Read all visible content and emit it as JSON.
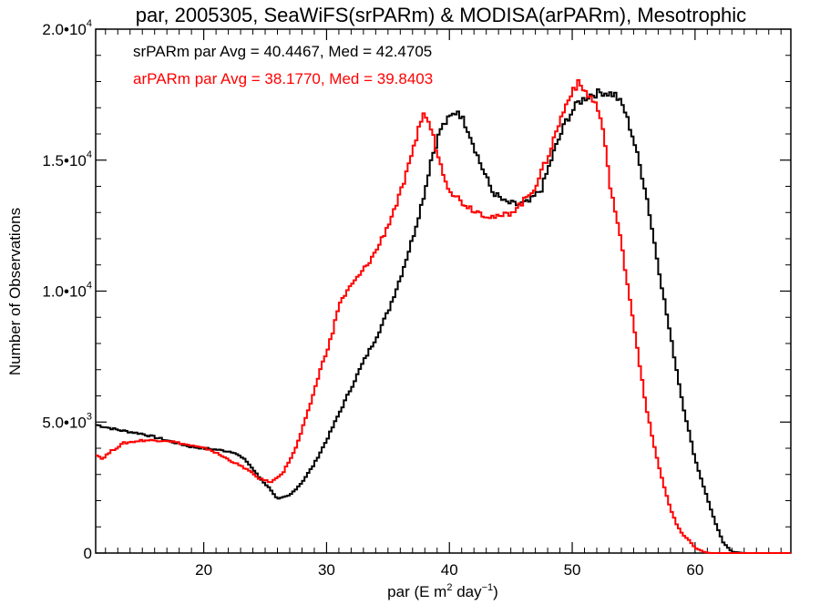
{
  "chart_data": {
    "type": "line",
    "title": "par, 2005305, SeaWiFS(srPARm) & MODISA(arPARm), Mesotrophic",
    "xlabel": {
      "base": "par (E m",
      "sup1": "2",
      "mid": " day",
      "sup2": "−1",
      "end": ")"
    },
    "ylabel": "Number of Observations",
    "xlim": [
      11.2,
      67.8
    ],
    "ylim": [
      0,
      20000
    ],
    "x_ticks": [
      {
        "value": 20,
        "label": "20"
      },
      {
        "value": 30,
        "label": "30"
      },
      {
        "value": 40,
        "label": "40"
      },
      {
        "value": 50,
        "label": "50"
      },
      {
        "value": 60,
        "label": "60"
      }
    ],
    "y_ticks": [
      {
        "value": 0,
        "mantissa": "0",
        "exp": ""
      },
      {
        "value": 5000,
        "mantissa": "5.0•10",
        "exp": "3"
      },
      {
        "value": 10000,
        "mantissa": "1.0•10",
        "exp": "4"
      },
      {
        "value": 15000,
        "mantissa": "1.5•10",
        "exp": "4"
      },
      {
        "value": 20000,
        "mantissa": "2.0•10",
        "exp": "4"
      }
    ],
    "grid": false,
    "legend_position": "top-left",
    "series": [
      {
        "name": "srPARm",
        "label": "srPARm par Avg = 40.4467, Med = 42.4705",
        "color": "#000000",
        "points": [
          [
            11.2,
            4900
          ],
          [
            13,
            4700
          ],
          [
            15,
            4550
          ],
          [
            17,
            4300
          ],
          [
            19,
            4050
          ],
          [
            21,
            3950
          ],
          [
            22.5,
            3850
          ],
          [
            23.5,
            3500
          ],
          [
            24.5,
            2900
          ],
          [
            25.5,
            2400
          ],
          [
            26,
            2050
          ],
          [
            27,
            2200
          ],
          [
            28,
            2700
          ],
          [
            29,
            3400
          ],
          [
            30,
            4300
          ],
          [
            31,
            5300
          ],
          [
            32,
            6300
          ],
          [
            33,
            7300
          ],
          [
            34,
            8200
          ],
          [
            35,
            9200
          ],
          [
            36,
            10500
          ],
          [
            37,
            12000
          ],
          [
            38,
            13800
          ],
          [
            38.5,
            15000
          ],
          [
            39.3,
            16200
          ],
          [
            40,
            16600
          ],
          [
            40.7,
            16900
          ],
          [
            41.5,
            16200
          ],
          [
            42.5,
            14900
          ],
          [
            43.5,
            13800
          ],
          [
            44.5,
            13400
          ],
          [
            45.5,
            13300
          ],
          [
            46.5,
            13400
          ],
          [
            47.5,
            13900
          ],
          [
            48.5,
            15300
          ],
          [
            49.5,
            16500
          ],
          [
            50.5,
            17200
          ],
          [
            51.5,
            17500
          ],
          [
            52.5,
            17600
          ],
          [
            53.5,
            17500
          ],
          [
            54.2,
            17000
          ],
          [
            55,
            15800
          ],
          [
            56,
            13800
          ],
          [
            57,
            11000
          ],
          [
            58,
            8300
          ],
          [
            59,
            5700
          ],
          [
            60,
            3600
          ],
          [
            61,
            2100
          ],
          [
            61.7,
            1100
          ],
          [
            62.3,
            400
          ],
          [
            63,
            50
          ],
          [
            64,
            0
          ],
          [
            67.8,
            0
          ]
        ]
      },
      {
        "name": "arPARm",
        "label": "arPARm par Avg = 38.1770, Med = 39.8403",
        "color": "#ff0000",
        "points": [
          [
            11.2,
            3800
          ],
          [
            11.7,
            3600
          ],
          [
            12.5,
            3900
          ],
          [
            13.5,
            4200
          ],
          [
            15,
            4300
          ],
          [
            17,
            4300
          ],
          [
            19,
            4100
          ],
          [
            20.5,
            3950
          ],
          [
            21.5,
            3700
          ],
          [
            22.5,
            3450
          ],
          [
            23.5,
            3200
          ],
          [
            24.5,
            2850
          ],
          [
            25.5,
            2700
          ],
          [
            26.5,
            3100
          ],
          [
            27.5,
            4000
          ],
          [
            28.5,
            5400
          ],
          [
            29.5,
            7000
          ],
          [
            30.5,
            8400
          ],
          [
            31,
            9500
          ],
          [
            32,
            10200
          ],
          [
            33,
            10800
          ],
          [
            34,
            11500
          ],
          [
            35,
            12500
          ],
          [
            36,
            13700
          ],
          [
            37,
            15200
          ],
          [
            37.5,
            16300
          ],
          [
            38,
            16800
          ],
          [
            38.5,
            16200
          ],
          [
            39.3,
            14800
          ],
          [
            40,
            13900
          ],
          [
            41,
            13400
          ],
          [
            42,
            13100
          ],
          [
            43,
            12900
          ],
          [
            44,
            12800
          ],
          [
            45,
            13000
          ],
          [
            46,
            13400
          ],
          [
            47,
            14000
          ],
          [
            48,
            15100
          ],
          [
            49,
            16500
          ],
          [
            50,
            17700
          ],
          [
            50.5,
            17900
          ],
          [
            51.3,
            17500
          ],
          [
            52,
            17100
          ],
          [
            52.5,
            16200
          ],
          [
            53,
            14300
          ],
          [
            54,
            11800
          ],
          [
            55,
            8800
          ],
          [
            56,
            5600
          ],
          [
            57,
            3400
          ],
          [
            57.5,
            2500
          ],
          [
            58,
            1700
          ],
          [
            58.5,
            1100
          ],
          [
            59,
            700
          ],
          [
            59.5,
            500
          ],
          [
            60,
            200
          ],
          [
            60.7,
            50
          ],
          [
            61.2,
            0
          ],
          [
            67.8,
            0
          ]
        ]
      }
    ]
  }
}
